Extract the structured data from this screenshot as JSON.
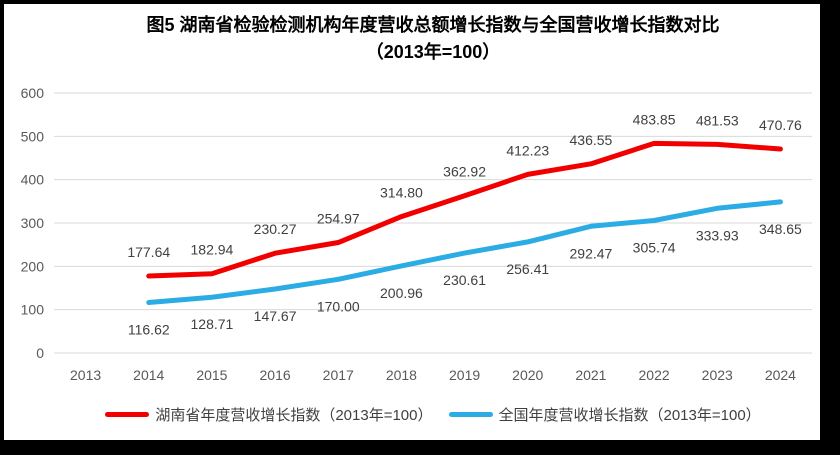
{
  "frame": {
    "border_color": "#000000",
    "background": "#FFFFFF"
  },
  "title": {
    "line1": "图5 湖南省检验检测机构年度营收总额增长指数与全国营收增长指数对比",
    "line2": "（2013年=100）"
  },
  "colors": {
    "gridline": "#D9D9D9",
    "tick_label": "#595959",
    "data_label": "#404040",
    "title": "#000000",
    "hunan_series": "#F20000",
    "national_series": "#2CACE4"
  },
  "chart_data": {
    "type": "line",
    "title": "图5 湖南省检验检测机构年度营收总额增长指数与全国营收增长指数对比（2013年=100）",
    "categories": [
      "2013",
      "2014",
      "2015",
      "2016",
      "2017",
      "2018",
      "2019",
      "2020",
      "2021",
      "2022",
      "2023",
      "2024"
    ],
    "series": [
      {
        "id": "hunan",
        "name": "湖南省年度营收增长指数（2013年=100）",
        "color": "#F20000",
        "label_position": "above",
        "values": [
          null,
          177.64,
          182.94,
          230.27,
          254.97,
          314.8,
          362.92,
          412.23,
          436.55,
          483.85,
          481.53,
          470.76
        ]
      },
      {
        "id": "national",
        "name": "全国年度营收增长指数（2013年=100）",
        "color": "#2CACE4",
        "label_position": "below",
        "values": [
          null,
          116.62,
          128.71,
          147.67,
          170.0,
          200.96,
          230.61,
          256.41,
          292.47,
          305.74,
          333.93,
          348.65
        ]
      }
    ],
    "ylim": [
      0,
      600
    ],
    "ytick_step": 100,
    "value_decimals": 2,
    "grid": true,
    "legend_position": "bottom"
  }
}
